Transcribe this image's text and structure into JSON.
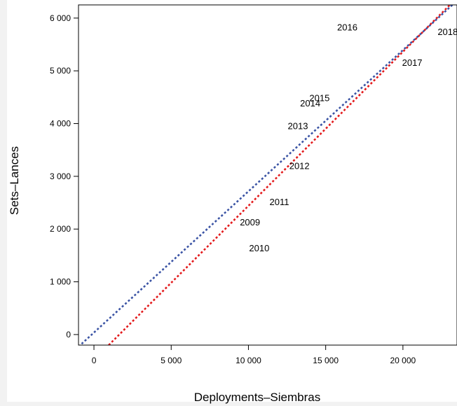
{
  "chart_data": {
    "type": "scatter",
    "title": "",
    "xlabel": "Deployments–Siembras",
    "ylabel": "Sets–Lances",
    "xlim": [
      -1000,
      23500
    ],
    "ylim": [
      -200,
      6250
    ],
    "x_ticks": [
      {
        "value": 0,
        "label": "0"
      },
      {
        "value": 5000,
        "label": "5 000"
      },
      {
        "value": 10000,
        "label": "10 000"
      },
      {
        "value": 15000,
        "label": "15 000"
      },
      {
        "value": 20000,
        "label": "20 000"
      }
    ],
    "y_ticks": [
      {
        "value": 0,
        "label": "0"
      },
      {
        "value": 1000,
        "label": "1 000"
      },
      {
        "value": 2000,
        "label": "2 000"
      },
      {
        "value": 3000,
        "label": "3 000"
      },
      {
        "value": 4000,
        "label": "4 000"
      },
      {
        "value": 5000,
        "label": "5 000"
      },
      {
        "value": 6000,
        "label": "6 000"
      }
    ],
    "points": [
      {
        "label": "2009",
        "x": 10100,
        "y": 2120
      },
      {
        "label": "2010",
        "x": 10700,
        "y": 1630
      },
      {
        "label": "2011",
        "x": 12000,
        "y": 2510
      },
      {
        "label": "2012",
        "x": 13300,
        "y": 3190
      },
      {
        "label": "2013",
        "x": 13200,
        "y": 3950
      },
      {
        "label": "2014",
        "x": 14000,
        "y": 4380
      },
      {
        "label": "2015",
        "x": 14600,
        "y": 4480
      },
      {
        "label": "2016",
        "x": 16400,
        "y": 5820
      },
      {
        "label": "2017",
        "x": 20600,
        "y": 5150
      },
      {
        "label": "2018",
        "x": 22900,
        "y": 5730
      }
    ],
    "lines": [
      {
        "color": "#e31a1c",
        "dash": "dotted",
        "x": [
          954,
          23042
        ],
        "y": [
          -200,
          6250
        ]
      },
      {
        "color": "#3a53a4",
        "dash": "dotted",
        "x": [
          -1000,
          23200
        ],
        "y": [
          -230,
          6250
        ]
      }
    ],
    "grid": false,
    "legend": "none"
  }
}
